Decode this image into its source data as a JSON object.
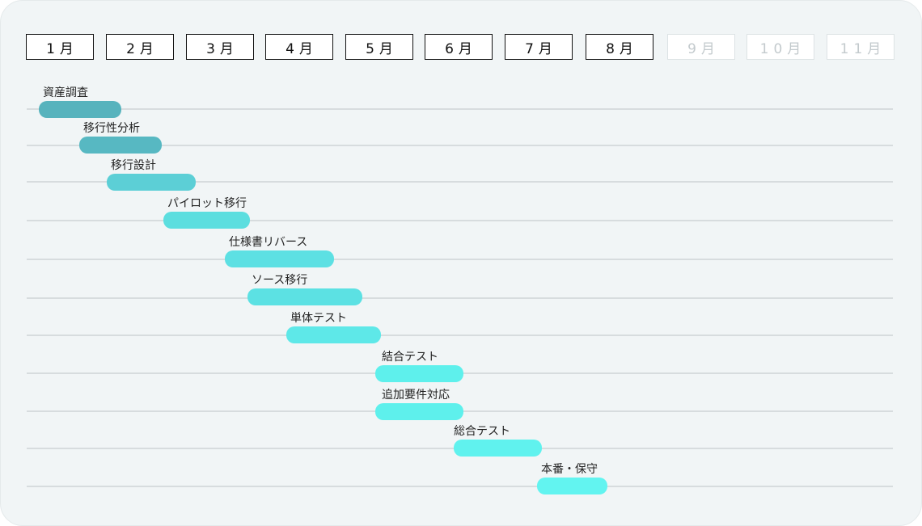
{
  "months": [
    {
      "label": "1月",
      "state": "active"
    },
    {
      "label": "2月",
      "state": "active"
    },
    {
      "label": "3月",
      "state": "active"
    },
    {
      "label": "4月",
      "state": "active"
    },
    {
      "label": "5月",
      "state": "active"
    },
    {
      "label": "6月",
      "state": "active"
    },
    {
      "label": "7月",
      "state": "active"
    },
    {
      "label": "8月",
      "state": "active"
    },
    {
      "label": "9月",
      "state": "future"
    },
    {
      "label": "10月",
      "state": "future"
    },
    {
      "label": "11月",
      "state": "future"
    }
  ],
  "tasks": [
    {
      "name": "資産調査",
      "color": "#57b3bd"
    },
    {
      "name": "移行性分析",
      "color": "#57b8c2"
    },
    {
      "name": "移行設計",
      "color": "#5ccfd6"
    },
    {
      "name": "パイロット移行",
      "color": "#5cdedf"
    },
    {
      "name": "仕様書リバース",
      "color": "#5de0e3"
    },
    {
      "name": "ソース移行",
      "color": "#5ce1e3"
    },
    {
      "name": "単体テスト",
      "color": "#5ee8e8"
    },
    {
      "name": "結合テスト",
      "color": "#5ef0ec"
    },
    {
      "name": "追加要件対応",
      "color": "#5ef0ec"
    },
    {
      "name": "総合テスト",
      "color": "#60f2ee"
    },
    {
      "name": "本番・保守",
      "color": "#62f4f0"
    }
  ],
  "colors": {
    "card_background": "#f1f5f6",
    "grid_line": "#d7dcde",
    "month_border": "#111111",
    "month_future": "#c3cacd"
  }
}
